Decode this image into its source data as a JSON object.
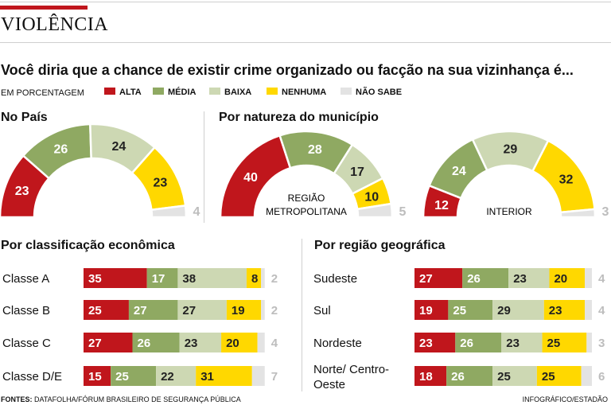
{
  "section_title": "VIOLÊNCIA",
  "question": "Você diria que a chance de existir crime organizado ou facção na sua vizinhança é...",
  "unit": "EM PORCENTAGEM",
  "legend": [
    {
      "key": "alta",
      "label": "ALTA",
      "color": "#c0161c"
    },
    {
      "key": "media",
      "label": "MÉDIA",
      "color": "#8fa962"
    },
    {
      "key": "baixa",
      "label": "BAIXA",
      "color": "#cdd8b3"
    },
    {
      "key": "nenhuma",
      "label": "NENHUMA",
      "color": "#ffd800"
    },
    {
      "key": "nao_sabe",
      "label": "NÃO SABE",
      "color": "#e3e3e3"
    }
  ],
  "headings": {
    "no_pais": "No País",
    "natureza": "Por natureza do município",
    "economica": "Por classificação econômica",
    "regiao": "Por região geográfica"
  },
  "chart_data": [
    {
      "type": "pie",
      "title": "No País",
      "series": [
        "ALTA",
        "MÉDIA",
        "BAIXA",
        "NENHUMA",
        "NÃO SABE"
      ],
      "values": [
        23,
        26,
        24,
        23,
        4
      ]
    },
    {
      "type": "pie",
      "title": "Por natureza do município",
      "label": "REGIÃO METROPOLITANA",
      "values": [
        40,
        28,
        17,
        10,
        5
      ]
    },
    {
      "type": "pie",
      "title": "Por natureza do município",
      "label": "INTERIOR",
      "values": [
        12,
        24,
        29,
        32,
        3
      ]
    },
    {
      "type": "bar",
      "title": "Por classificação econômica",
      "stacked": true,
      "categories": [
        "Classe A",
        "Classe B",
        "Classe C",
        "Classe D/E"
      ],
      "series": [
        {
          "name": "ALTA",
          "values": [
            35,
            25,
            27,
            15
          ]
        },
        {
          "name": "MÉDIA",
          "values": [
            17,
            27,
            26,
            25
          ]
        },
        {
          "name": "BAIXA",
          "values": [
            38,
            27,
            23,
            22
          ]
        },
        {
          "name": "NENHUMA",
          "values": [
            8,
            19,
            20,
            31
          ]
        },
        {
          "name": "NÃO SABE",
          "values": [
            2,
            2,
            4,
            7
          ]
        }
      ]
    },
    {
      "type": "bar",
      "title": "Por região geográfica",
      "stacked": true,
      "categories": [
        "Sudeste",
        "Sul",
        "Nordeste",
        "Norte/ Centro-Oeste"
      ],
      "series": [
        {
          "name": "ALTA",
          "values": [
            27,
            19,
            23,
            18
          ]
        },
        {
          "name": "MÉDIA",
          "values": [
            26,
            25,
            26,
            26
          ]
        },
        {
          "name": "BAIXA",
          "values": [
            23,
            29,
            23,
            25
          ]
        },
        {
          "name": "NENHUMA",
          "values": [
            20,
            23,
            25,
            25
          ]
        },
        {
          "name": "NÃO SABE",
          "values": [
            4,
            4,
            3,
            6
          ]
        }
      ]
    }
  ],
  "sources_label": "FONTES:",
  "sources_text": " DATAFOLHA/FÓRUM BRASILEIRO DE SEGURANÇA PÚBLICA",
  "credit": "INFOGRÁFICO/ESTADÃO"
}
